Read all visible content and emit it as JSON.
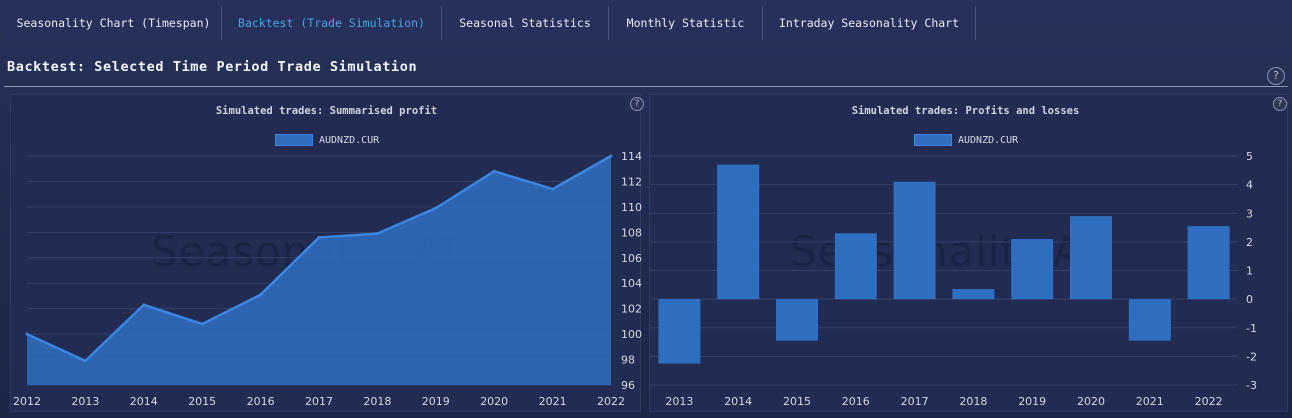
{
  "tabs": [
    {
      "label": "Seasonality Chart (Timespan)",
      "active": false
    },
    {
      "label": "Backtest (Trade Simulation)",
      "active": true
    },
    {
      "label": "Seasonal Statistics",
      "active": false
    },
    {
      "label": "Monthly Statistic",
      "active": false
    },
    {
      "label": "Intraday Seasonality Chart",
      "active": false
    }
  ],
  "page": {
    "title": "Backtest: Selected Time Period Trade Simulation",
    "help": "?"
  },
  "watermark": "Seasonality.AI",
  "colors": {
    "accent": "#4aa3e0",
    "series": "#2f6fc1",
    "series_line": "#3a86e0"
  },
  "left_chart": {
    "title": "Simulated trades: Summarised profit",
    "help": "?"
  },
  "right_chart": {
    "title": "Simulated trades: Profits and losses",
    "help": "?"
  },
  "chart_data": [
    {
      "type": "area",
      "title": "Simulated trades: Summarised profit",
      "x": [
        "2012",
        "2013",
        "2014",
        "2015",
        "2016",
        "2017",
        "2018",
        "2019",
        "2020",
        "2021",
        "2022"
      ],
      "series": [
        {
          "name": "AUDNZD.CUR",
          "values": [
            100.0,
            97.9,
            102.3,
            100.8,
            103.1,
            107.6,
            107.9,
            109.9,
            112.8,
            111.4,
            114.0
          ]
        }
      ],
      "y_ticks": [
        "96",
        "98",
        "100",
        "102",
        "104",
        "106",
        "108",
        "110",
        "112",
        "114"
      ],
      "ylim": [
        96,
        114
      ],
      "grid": true,
      "legend": "top-center"
    },
    {
      "type": "bar",
      "title": "Simulated trades: Profits and losses",
      "categories": [
        "2013",
        "2014",
        "2015",
        "2016",
        "2017",
        "2018",
        "2019",
        "2020",
        "2021",
        "2022"
      ],
      "series": [
        {
          "name": "AUDNZD.CUR",
          "values": [
            -2.25,
            4.7,
            -1.45,
            2.3,
            4.1,
            0.35,
            2.1,
            2.9,
            -1.45,
            2.55
          ]
        }
      ],
      "y_ticks": [
        "-3",
        "-2",
        "-1",
        "0",
        "1",
        "2",
        "3",
        "4",
        "5"
      ],
      "ylim": [
        -3,
        5
      ],
      "grid": true,
      "legend": "top-center"
    }
  ]
}
